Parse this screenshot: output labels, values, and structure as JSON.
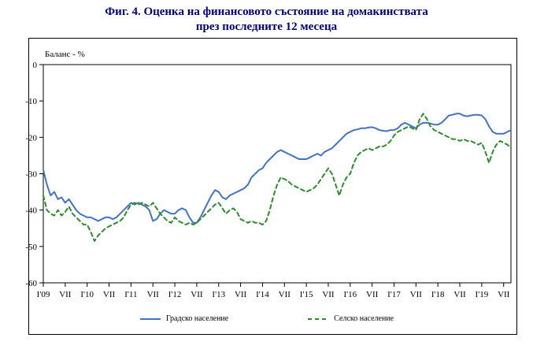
{
  "title_line1": "Фиг. 4. Оценка на финансовото състояние на домакинствата",
  "title_line2": "през последните 12 месеца",
  "colors": {
    "title": "#000080",
    "axis": "#000000",
    "background": "#FFFFFF"
  },
  "chart_data": {
    "type": "line",
    "title": "Оценка на финансовото състояние на домакинствата през последните 12 месеца",
    "y_axis_label": "Баланс - %",
    "ylim": [
      -60,
      0
    ],
    "y_ticks": [
      0,
      -10,
      -20,
      -30,
      -40,
      -50,
      -60
    ],
    "x_description": "monthly observations, Jan 2009 - Sep 2019",
    "n_points": 129,
    "x_tick_labels": [
      "I'09",
      "VII",
      "I'10",
      "VII",
      "I'11",
      "VII",
      "I'12",
      "VII",
      "I'13",
      "VII",
      "I'14",
      "VII",
      "I'15",
      "VII",
      "I'16",
      "VII",
      "I'17",
      "VII",
      "I'18",
      "VII",
      "I'19",
      "VII"
    ],
    "x_tick_indices": [
      0,
      6,
      12,
      18,
      24,
      30,
      36,
      42,
      48,
      54,
      60,
      66,
      72,
      78,
      84,
      90,
      96,
      102,
      108,
      114,
      120,
      126
    ],
    "grid": false,
    "legend_position": "bottom",
    "series": [
      {
        "name": "Градско население",
        "color": "#4472C4",
        "style": "solid",
        "values": [
          -29,
          -33,
          -36,
          -35,
          -37,
          -36.5,
          -38,
          -37,
          -38.5,
          -40,
          -41,
          -41.5,
          -42,
          -42,
          -42.5,
          -43,
          -42.5,
          -42,
          -42,
          -42.5,
          -42,
          -41,
          -40,
          -39,
          -38,
          -38.5,
          -38,
          -38.5,
          -39,
          -40,
          -43,
          -42.5,
          -41,
          -40,
          -40.5,
          -41,
          -41,
          -40,
          -39.5,
          -40,
          -42,
          -43.5,
          -43.5,
          -42,
          -40,
          -38,
          -36,
          -34.5,
          -35,
          -36.5,
          -37,
          -36,
          -35.5,
          -35,
          -34.5,
          -34,
          -33,
          -31,
          -30,
          -29,
          -28.5,
          -27,
          -26,
          -25,
          -24,
          -23.5,
          -24,
          -24.5,
          -25,
          -25.5,
          -26,
          -26,
          -26,
          -25.5,
          -25,
          -24.5,
          -25,
          -24,
          -23.5,
          -23,
          -22,
          -21,
          -20,
          -19,
          -18.5,
          -18,
          -17.8,
          -17.5,
          -17.5,
          -17.3,
          -17.2,
          -17.5,
          -18,
          -18.2,
          -18.3,
          -18,
          -18,
          -17.5,
          -16.5,
          -16,
          -16.5,
          -17,
          -17.5,
          -16.5,
          -16,
          -16,
          -16.2,
          -16.5,
          -16.5,
          -16,
          -15,
          -14,
          -13.8,
          -13.5,
          -13.5,
          -14,
          -14.2,
          -14,
          -13.8,
          -13.8,
          -14,
          -15,
          -17,
          -18.5,
          -19,
          -19,
          -19,
          -18.5,
          -18
        ]
      },
      {
        "name": "Селско население",
        "color": "#2E8B2E",
        "style": "dashed",
        "values": [
          -36,
          -40,
          -41,
          -41.5,
          -40,
          -41.5,
          -40.5,
          -39,
          -41,
          -42,
          -43,
          -44,
          -44,
          -46,
          -48.5,
          -47,
          -46,
          -45,
          -44.5,
          -44,
          -43.5,
          -43,
          -42,
          -40,
          -38.5,
          -38,
          -38.5,
          -38,
          -38.5,
          -39,
          -38,
          -39.5,
          -41,
          -42,
          -43,
          -43.5,
          -42,
          -43,
          -43.5,
          -44,
          -43.5,
          -44,
          -43.5,
          -42.5,
          -41.5,
          -40.5,
          -39.5,
          -38.5,
          -38,
          -39.5,
          -41,
          -40,
          -39.5,
          -40.5,
          -42.5,
          -43,
          -43.5,
          -43,
          -43.5,
          -43.5,
          -44,
          -43,
          -40,
          -36,
          -33,
          -31,
          -31.5,
          -32,
          -33,
          -33.5,
          -34,
          -34.5,
          -35,
          -34.5,
          -34,
          -33,
          -31.5,
          -30,
          -28.5,
          -30,
          -33,
          -36,
          -33,
          -31,
          -30,
          -27,
          -25,
          -24,
          -23.5,
          -23,
          -23.5,
          -23,
          -22.5,
          -22.5,
          -22,
          -21,
          -19.5,
          -18.5,
          -18,
          -17.5,
          -17,
          -17.5,
          -18,
          -15,
          -13.5,
          -15,
          -17,
          -18,
          -18.5,
          -19,
          -19.5,
          -20,
          -20.5,
          -20.5,
          -21,
          -20.5,
          -21,
          -21,
          -21.5,
          -22,
          -21.5,
          -24,
          -27,
          -24,
          -22,
          -21,
          -21.5,
          -22,
          -23
        ]
      }
    ]
  }
}
